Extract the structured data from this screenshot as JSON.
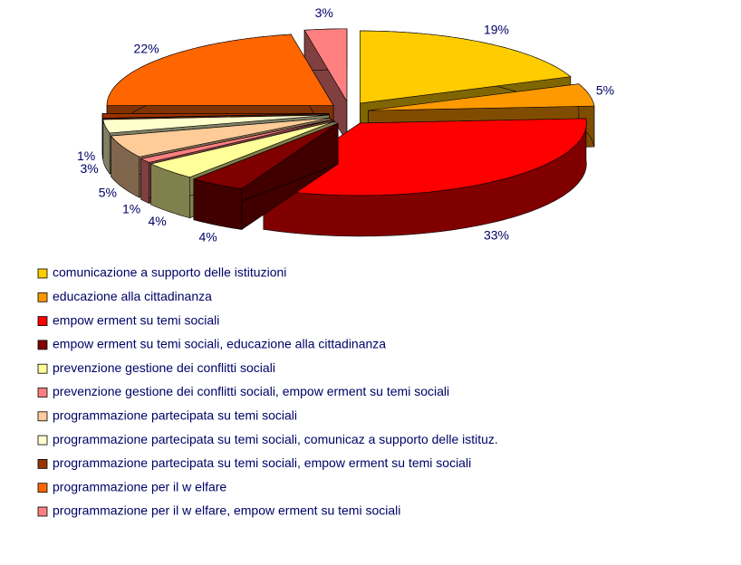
{
  "chart_data": {
    "type": "pie",
    "categories": [
      "comunicazione a supporto delle istituzioni",
      "educazione alla cittadinanza",
      "empow erment su temi sociali",
      "empow erment su temi sociali, educazione alla cittadinanza",
      "prevenzione gestione dei conflitti sociali",
      "prevenzione gestione dei conflitti sociali, empow erment su temi sociali",
      "programmazione partecipata su temi sociali",
      "programmazione partecipata su temi sociali, comunicaz a supporto delle istituz.",
      "programmazione partecipata su temi sociali, empow erment su temi sociali",
      "programmazione per il w elfare",
      "programmazione per il w elfare, empow erment su temi sociali"
    ],
    "values": [
      19,
      5,
      33,
      4,
      4,
      1,
      5,
      3,
      1,
      22,
      3
    ],
    "value_labels": [
      "19%",
      "5%",
      "33%",
      "4%",
      "4%",
      "1%",
      "5%",
      "3%",
      "1%",
      "22%",
      "3%"
    ],
    "colors": [
      "#FFCC00",
      "#FF9900",
      "#FF0000",
      "#800000",
      "#FFFF99",
      "#FF8080",
      "#FFCC99",
      "#FFFFCC",
      "#993300",
      "#FF6600",
      "#FF8080"
    ],
    "legend": "bottom"
  }
}
